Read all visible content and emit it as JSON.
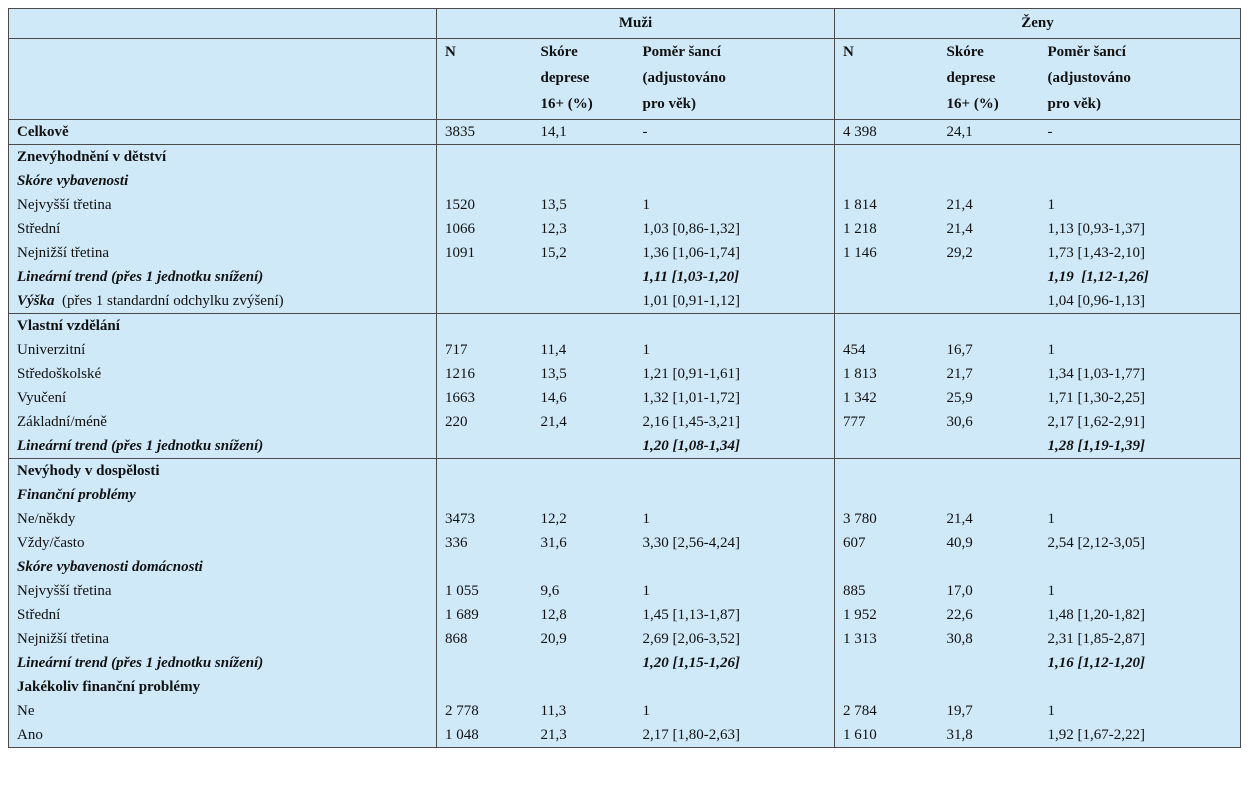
{
  "header": {
    "group_men": "Muži",
    "group_women": "Ženy",
    "col_n": "N",
    "col_score": [
      "Skóre",
      "deprese",
      "16+ (%)"
    ],
    "col_or": [
      "Poměr šancí",
      "(adjustováno",
      "pro věk)"
    ]
  },
  "rows": [
    {
      "kind": "bold-grp",
      "label": "Celkově",
      "m_n": "3835",
      "m_s": "14,1",
      "m_or": "-",
      "w_n": "4 398",
      "w_s": "24,1",
      "w_or": "-"
    },
    {
      "kind": "bold-grp",
      "label": "Znevýhodnění v dětství",
      "m_n": "",
      "m_s": "",
      "m_or": "",
      "w_n": "",
      "w_s": "",
      "w_or": ""
    },
    {
      "kind": "bi",
      "label": "Skóre vybavenosti",
      "m_n": "",
      "m_s": "",
      "m_or": "",
      "w_n": "",
      "w_s": "",
      "w_or": ""
    },
    {
      "kind": "plain",
      "label": "Nejvyšší třetina",
      "m_n": "1520",
      "m_s": "13,5",
      "m_or": "1",
      "w_n": "1 814",
      "w_s": "21,4",
      "w_or": "1"
    },
    {
      "kind": "plain",
      "label": "Střední",
      "m_n": "1066",
      "m_s": "12,3",
      "m_or": "1,03 [0,86-1,32]",
      "w_n": "1 218",
      "w_s": "21,4",
      "w_or": "1,13 [0,93-1,37]"
    },
    {
      "kind": "plain",
      "label": "Nejnižší třetina",
      "m_n": "1091",
      "m_s": "15,2",
      "m_or": "1,36 [1,06-1,74]",
      "w_n": "1 146",
      "w_s": "29,2",
      "w_or": "1,73 [1,43-2,10]"
    },
    {
      "kind": "bi",
      "label": "Lineární trend (přes 1 jednotku snížení)",
      "m_n": "",
      "m_s": "",
      "m_or": "1,11 [1,03-1,20]",
      "w_n": "",
      "w_s": "",
      "w_or": "1,19  [1,12-1,26]"
    },
    {
      "kind": "mixed",
      "label_bi": "Výška",
      "label_rest": "  (přes 1 standardní odchylku zvýšení)",
      "m_n": "",
      "m_s": "",
      "m_or": "1,01 [0,91-1,12]",
      "w_n": "",
      "w_s": "",
      "w_or": "1,04 [0,96-1,13]"
    },
    {
      "kind": "bold-grp",
      "label": "Vlastní vzdělání",
      "m_n": "",
      "m_s": "",
      "m_or": "",
      "w_n": "",
      "w_s": "",
      "w_or": ""
    },
    {
      "kind": "plain",
      "label": "Univerzitní",
      "m_n": "717",
      "m_s": "11,4",
      "m_or": "1",
      "w_n": "454",
      "w_s": "16,7",
      "w_or": "1"
    },
    {
      "kind": "plain",
      "label": "Středoškolské",
      "m_n": "1216",
      "m_s": "13,5",
      "m_or": "1,21 [0,91-1,61]",
      "w_n": "1 813",
      "w_s": "21,7",
      "w_or": "1,34 [1,03-1,77]"
    },
    {
      "kind": "plain",
      "label": "Vyučení",
      "m_n": "1663",
      "m_s": "14,6",
      "m_or": "1,32 [1,01-1,72]",
      "w_n": "1 342",
      "w_s": "25,9",
      "w_or": "1,71 [1,30-2,25]"
    },
    {
      "kind": "plain",
      "label": "Základní/méně",
      "m_n": "220",
      "m_s": "21,4",
      "m_or": "2,16 [1,45-3,21]",
      "w_n": "777",
      "w_s": "30,6",
      "w_or": "2,17 [1,62-2,91]"
    },
    {
      "kind": "bi",
      "label": "Lineární trend (přes 1 jednotku snížení)",
      "m_n": "",
      "m_s": "",
      "m_or": "1,20 [1,08-1,34]",
      "w_n": "",
      "w_s": "",
      "w_or": "1,28 [1,19-1,39]"
    },
    {
      "kind": "bold-grp",
      "label": "Nevýhody v dospělosti",
      "m_n": "",
      "m_s": "",
      "m_or": "",
      "w_n": "",
      "w_s": "",
      "w_or": ""
    },
    {
      "kind": "bi",
      "label": "Finanční problémy",
      "m_n": "",
      "m_s": "",
      "m_or": "",
      "w_n": "",
      "w_s": "",
      "w_or": ""
    },
    {
      "kind": "plain",
      "label": "Ne/někdy",
      "m_n": "3473",
      "m_s": "12,2",
      "m_or": "1",
      "w_n": "3 780",
      "w_s": "21,4",
      "w_or": "1"
    },
    {
      "kind": "plain",
      "label": "Vždy/často",
      "m_n": "336",
      "m_s": "31,6",
      "m_or": "3,30 [2,56-4,24]",
      "w_n": "607",
      "w_s": "40,9",
      "w_or": "2,54 [2,12-3,05]"
    },
    {
      "kind": "bi",
      "label": "Skóre vybavenosti domácnosti",
      "m_n": "",
      "m_s": "",
      "m_or": "",
      "w_n": "",
      "w_s": "",
      "w_or": ""
    },
    {
      "kind": "plain",
      "label": "Nejvyšší třetina",
      "m_n": "1 055",
      "m_s": "9,6",
      "m_or": "1",
      "w_n": "885",
      "w_s": "17,0",
      "w_or": "1"
    },
    {
      "kind": "plain",
      "label": "Střední",
      "m_n": "1 689",
      "m_s": "12,8",
      "m_or": "1,45 [1,13-1,87]",
      "w_n": "1 952",
      "w_s": "22,6",
      "w_or": "1,48 [1,20-1,82]"
    },
    {
      "kind": "plain",
      "label": "Nejnižší třetina",
      "m_n": "868",
      "m_s": "20,9",
      "m_or": "2,69 [2,06-3,52]",
      "w_n": "1 313",
      "w_s": "30,8",
      "w_or": "2,31 [1,85-2,87]"
    },
    {
      "kind": "bi",
      "label": "Lineární trend (přes 1 jednotku snížení)",
      "m_n": "",
      "m_s": "",
      "m_or": "1,20 [1,15-1,26]",
      "w_n": "",
      "w_s": "",
      "w_or": "1,16 [1,12-1,20]"
    },
    {
      "kind": "bold",
      "label": "Jakékoliv finanční problémy",
      "m_n": "",
      "m_s": "",
      "m_or": "",
      "w_n": "",
      "w_s": "",
      "w_or": ""
    },
    {
      "kind": "plain",
      "label": "Ne",
      "m_n": "2 778",
      "m_s": "11,3",
      "m_or": "1",
      "w_n": "2 784",
      "w_s": "19,7",
      "w_or": "1"
    },
    {
      "kind": "plain",
      "label": "Ano",
      "m_n": "1 048",
      "m_s": "21,3",
      "m_or": "2,17 [1,80-2,63]",
      "w_n": "1 610",
      "w_s": "31,8",
      "w_or": "1,92 [1,67-2,22]"
    }
  ]
}
